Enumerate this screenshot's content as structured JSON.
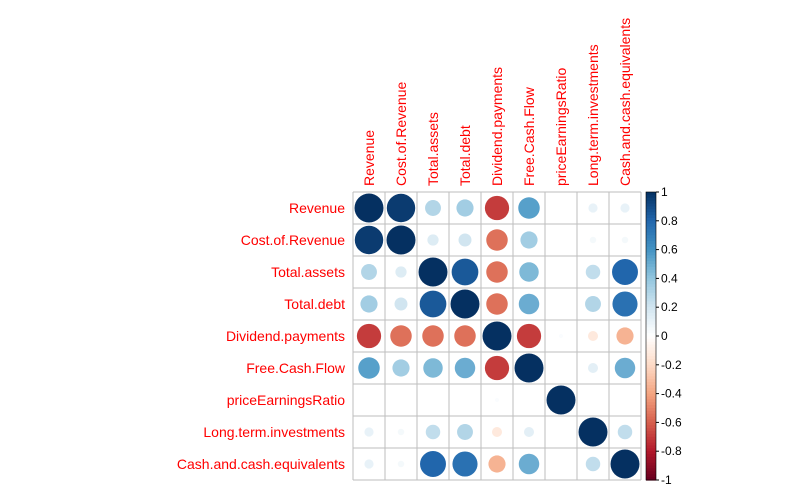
{
  "chart_data": {
    "type": "heatmap",
    "variables": [
      "Revenue",
      "Cost.of.Revenue",
      "Total.assets",
      "Total.debt",
      "Dividend.payments",
      "Free.Cash.Flow",
      "priceEarningsRatio",
      "Long.term.investments",
      "Cash.and.cash.equivalents"
    ],
    "matrix": [
      [
        1.0,
        0.96,
        0.3,
        0.35,
        -0.7,
        0.55,
        0.0,
        0.1,
        0.1
      ],
      [
        0.96,
        1.0,
        0.15,
        0.2,
        -0.55,
        0.35,
        0.0,
        0.05,
        0.05
      ],
      [
        0.3,
        0.15,
        1.0,
        0.85,
        -0.55,
        0.45,
        0.0,
        0.25,
        0.8
      ],
      [
        0.35,
        0.2,
        0.85,
        1.0,
        -0.55,
        0.5,
        0.0,
        0.3,
        0.75
      ],
      [
        -0.7,
        -0.55,
        -0.55,
        -0.55,
        1.0,
        -0.7,
        0.02,
        -0.12,
        -0.35
      ],
      [
        0.55,
        0.35,
        0.45,
        0.5,
        -0.7,
        1.0,
        0.0,
        0.12,
        0.5
      ],
      [
        0.0,
        0.0,
        0.0,
        0.0,
        0.02,
        0.0,
        1.0,
        0.0,
        0.0
      ],
      [
        0.1,
        0.05,
        0.25,
        0.3,
        -0.12,
        0.12,
        0.0,
        1.0,
        0.25
      ],
      [
        0.1,
        0.05,
        0.8,
        0.75,
        -0.35,
        0.5,
        0.0,
        0.25,
        1.0
      ]
    ],
    "colorbar": {
      "range": [
        -1,
        1
      ],
      "ticks": [
        "1",
        "0.8",
        "0.6",
        "0.4",
        "0.2",
        "0",
        "-0.2",
        "-0.4",
        "-0.6",
        "-0.8",
        "-1"
      ]
    },
    "label_color": "#FF0000",
    "grid_color": "#BEBEBE",
    "colors": {
      "negative": "#67001F",
      "neutral": "#FFFFFF",
      "positive": "#053061"
    }
  }
}
